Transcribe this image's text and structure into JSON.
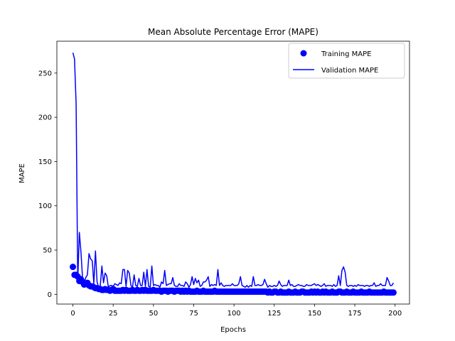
{
  "chart_data": {
    "type": "line",
    "title": "Mean Absolute Percentage Error (MAPE)",
    "xlabel": "Epochs",
    "ylabel": "MAPE",
    "xlim": [
      -9.95,
      208.95
    ],
    "ylim": [
      -11,
      286
    ],
    "xticks": [
      0,
      25,
      50,
      75,
      100,
      125,
      150,
      175,
      200
    ],
    "yticks": [
      0,
      50,
      100,
      150,
      200,
      250
    ],
    "legend_position": "top-right",
    "grid": false,
    "series": [
      {
        "name": "Training MAPE",
        "style": "markers",
        "color": "#0000ff",
        "x": [
          0,
          1,
          2,
          3,
          4,
          5,
          6,
          7,
          8,
          9,
          10,
          11,
          12,
          13,
          14,
          15,
          16,
          17,
          18,
          19,
          20,
          21,
          22,
          23,
          24,
          25,
          26,
          27,
          28,
          29,
          30,
          31,
          32,
          33,
          34,
          35,
          36,
          37,
          38,
          39,
          40,
          41,
          42,
          43,
          44,
          45,
          46,
          47,
          48,
          49,
          50,
          51,
          52,
          53,
          54,
          55,
          56,
          57,
          58,
          59,
          60,
          61,
          62,
          63,
          64,
          65,
          66,
          67,
          68,
          69,
          70,
          71,
          72,
          73,
          74,
          75,
          76,
          77,
          78,
          79,
          80,
          81,
          82,
          83,
          84,
          85,
          86,
          87,
          88,
          89,
          90,
          91,
          92,
          93,
          94,
          95,
          96,
          97,
          98,
          99,
          100,
          101,
          102,
          103,
          104,
          105,
          106,
          107,
          108,
          109,
          110,
          111,
          112,
          113,
          114,
          115,
          116,
          117,
          118,
          119,
          120,
          121,
          122,
          123,
          124,
          125,
          126,
          127,
          128,
          129,
          130,
          131,
          132,
          133,
          134,
          135,
          136,
          137,
          138,
          139,
          140,
          141,
          142,
          143,
          144,
          145,
          146,
          147,
          148,
          149,
          150,
          151,
          152,
          153,
          154,
          155,
          156,
          157,
          158,
          159,
          160,
          161,
          162,
          163,
          164,
          165,
          166,
          167,
          168,
          169,
          170,
          171,
          172,
          173,
          174,
          175,
          176,
          177,
          178,
          179,
          180,
          181,
          182,
          183,
          184,
          185,
          186,
          187,
          188,
          189,
          190,
          191,
          192,
          193,
          194,
          195,
          196,
          197,
          198,
          199
        ],
        "y": [
          31,
          22,
          22,
          20,
          15,
          17,
          14,
          11,
          12,
          13,
          10,
          9,
          9,
          8,
          7,
          7,
          6,
          6,
          5,
          5,
          6,
          5,
          5,
          4,
          5,
          6,
          4,
          4,
          4,
          4,
          4,
          5,
          4,
          5,
          4,
          4,
          4,
          5,
          4,
          4,
          5,
          4,
          4,
          5,
          4,
          5,
          4,
          4,
          4,
          4,
          5,
          4,
          4,
          4,
          4,
          3,
          4,
          4,
          4,
          3,
          4,
          4,
          4,
          3,
          4,
          4,
          4,
          3,
          4,
          3,
          4,
          3,
          4,
          3,
          3,
          3,
          3,
          4,
          3,
          3,
          3,
          4,
          3,
          3,
          3,
          3,
          3,
          3,
          4,
          3,
          3,
          3,
          3,
          3,
          3,
          3,
          3,
          3,
          3,
          3,
          3,
          3,
          3,
          3,
          3,
          3,
          3,
          3,
          3,
          3,
          3,
          3,
          3,
          3,
          3,
          3,
          3,
          3,
          3,
          3,
          3,
          2,
          3,
          2,
          2,
          3,
          3,
          2,
          2,
          3,
          2,
          2,
          2,
          2,
          3,
          2,
          2,
          2,
          3,
          2,
          2,
          2,
          3,
          3,
          2,
          2,
          2,
          2,
          3,
          2,
          3,
          2,
          3,
          2,
          2,
          3,
          2,
          3,
          2,
          2,
          2,
          3,
          2,
          2,
          2,
          3,
          3,
          2,
          2,
          2,
          3,
          2,
          2,
          2,
          3,
          2,
          2,
          2,
          2,
          3,
          2,
          2,
          2,
          2,
          3,
          2,
          2,
          2,
          2,
          2,
          2,
          2,
          2,
          3,
          2,
          2,
          2,
          2,
          2,
          2
        ]
      },
      {
        "name": "Validation MAPE",
        "style": "line",
        "color": "#0000ff",
        "x": [
          0,
          1,
          2,
          3,
          4,
          5,
          6,
          7,
          8,
          9,
          10,
          11,
          12,
          13,
          14,
          15,
          16,
          17,
          18,
          19,
          20,
          21,
          22,
          23,
          24,
          25,
          26,
          27,
          28,
          29,
          30,
          31,
          32,
          33,
          34,
          35,
          36,
          37,
          38,
          39,
          40,
          41,
          42,
          43,
          44,
          45,
          46,
          47,
          48,
          49,
          50,
          51,
          52,
          53,
          54,
          55,
          56,
          57,
          58,
          59,
          60,
          61,
          62,
          63,
          64,
          65,
          66,
          67,
          68,
          69,
          70,
          71,
          72,
          73,
          74,
          75,
          76,
          77,
          78,
          79,
          80,
          81,
          82,
          83,
          84,
          85,
          86,
          87,
          88,
          89,
          90,
          91,
          92,
          93,
          94,
          95,
          96,
          97,
          98,
          99,
          100,
          101,
          102,
          103,
          104,
          105,
          106,
          107,
          108,
          109,
          110,
          111,
          112,
          113,
          114,
          115,
          116,
          117,
          118,
          119,
          120,
          121,
          122,
          123,
          124,
          125,
          126,
          127,
          128,
          129,
          130,
          131,
          132,
          133,
          134,
          135,
          136,
          137,
          138,
          139,
          140,
          141,
          142,
          143,
          144,
          145,
          146,
          147,
          148,
          149,
          150,
          151,
          152,
          153,
          154,
          155,
          156,
          157,
          158,
          159,
          160,
          161,
          162,
          163,
          164,
          165,
          166,
          167,
          168,
          169,
          170,
          171,
          172,
          173,
          174,
          175,
          176,
          177,
          178,
          179,
          180,
          181,
          182,
          183,
          184,
          185,
          186,
          187,
          188,
          189,
          190,
          191,
          192,
          193,
          194,
          195,
          196,
          197,
          198,
          199
        ],
        "y": [
          273,
          266,
          215,
          15,
          70,
          48,
          18,
          13,
          19,
          22,
          46,
          40,
          38,
          12,
          49,
          14,
          8,
          10,
          32,
          13,
          24,
          21,
          8,
          10,
          10,
          9,
          12,
          11,
          10,
          13,
          12,
          28,
          28,
          9,
          27,
          24,
          10,
          8,
          22,
          10,
          9,
          18,
          10,
          10,
          25,
          9,
          28,
          9,
          8,
          32,
          10,
          11,
          10,
          10,
          8,
          14,
          12,
          27,
          10,
          11,
          12,
          12,
          19,
          10,
          9,
          9,
          12,
          10,
          10,
          9,
          14,
          12,
          8,
          11,
          20,
          11,
          18,
          13,
          16,
          9,
          10,
          14,
          14,
          16,
          20,
          9,
          11,
          10,
          11,
          10,
          28,
          10,
          13,
          10,
          9,
          10,
          10,
          10,
          10,
          12,
          10,
          10,
          10,
          12,
          20,
          10,
          9,
          8,
          10,
          8,
          10,
          9,
          20,
          10,
          10,
          11,
          10,
          10,
          11,
          17,
          12,
          8,
          10,
          9,
          9,
          10,
          9,
          10,
          15,
          11,
          9,
          10,
          10,
          10,
          16,
          10,
          11,
          9,
          9,
          10,
          11,
          10,
          10,
          9,
          9,
          11,
          10,
          10,
          10,
          11,
          12,
          10,
          11,
          10,
          9,
          10,
          12,
          9,
          10,
          10,
          10,
          9,
          11,
          9,
          10,
          21,
          10,
          27,
          31,
          25,
          10,
          9,
          10,
          10,
          9,
          10,
          9,
          11,
          10,
          10,
          10,
          9,
          10,
          10,
          9,
          10,
          10,
          13,
          9,
          10,
          10,
          12,
          10,
          10,
          10,
          19,
          15,
          10,
          10,
          13
        ]
      }
    ]
  }
}
